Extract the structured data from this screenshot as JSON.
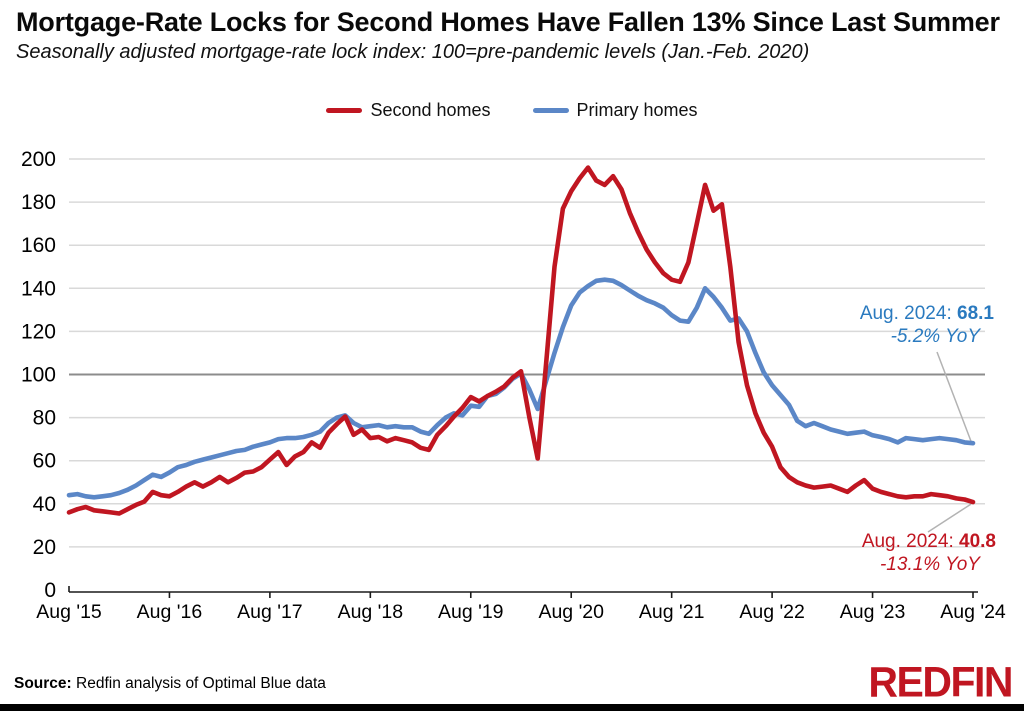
{
  "header": {
    "title": "Mortgage-Rate Locks for Second Homes Have Fallen 13% Since Last Summer",
    "subtitle": "Seasonally adjusted mortgage-rate lock index: 100=pre-pandemic levels (Jan.-Feb. 2020)"
  },
  "legend": [
    {
      "label": "Second homes",
      "color": "#c01621"
    },
    {
      "label": "Primary homes",
      "color": "#5b87c7"
    }
  ],
  "chart_data": {
    "type": "line",
    "title": "Mortgage-Rate Locks for Second Homes Have Fallen 13% Since Last Summer",
    "subtitle": "Seasonally adjusted mortgage-rate lock index: 100=pre-pandemic levels (Jan.-Feb. 2020)",
    "x_start": "2015-08",
    "x_end": "2024-08",
    "frequency": "monthly",
    "n_points": 109,
    "x_tick_labels": [
      "Aug '15",
      "Aug '16",
      "Aug '17",
      "Aug '18",
      "Aug '19",
      "Aug '20",
      "Aug '21",
      "Aug '22",
      "Aug '23",
      "Aug '24"
    ],
    "y_axis": {
      "min": 0,
      "max": 200,
      "step": 20,
      "reference_line": 100
    },
    "grid": "horizontal",
    "legend_position": "top-center",
    "series": [
      {
        "name": "Second homes",
        "color": "#c01621",
        "values": [
          36,
          37.5,
          38.5,
          37,
          36.5,
          36,
          35.5,
          37.5,
          39.5,
          41,
          45.5,
          44,
          43.5,
          45.5,
          48,
          50,
          48,
          50,
          52.5,
          50,
          52,
          54.5,
          55,
          57,
          60.5,
          64,
          58,
          62,
          64,
          68.5,
          66,
          73,
          77,
          80.5,
          72,
          74.5,
          70.5,
          71,
          69,
          70.5,
          69.5,
          68.5,
          66,
          65,
          72,
          76,
          80.5,
          84.5,
          89.5,
          87.5,
          90,
          92,
          94.5,
          98.5,
          101.5,
          80,
          61,
          105,
          150,
          177,
          185,
          191,
          196,
          190,
          188,
          192,
          186,
          175,
          166,
          158,
          152,
          147,
          144,
          143,
          152,
          170,
          188,
          176,
          179,
          150,
          115,
          95,
          82,
          73,
          66.5,
          57,
          52.5,
          50,
          48.5,
          47.5,
          48,
          48.5,
          47,
          45.5,
          48.5,
          51,
          47,
          45.5,
          44.5,
          43.5,
          43,
          43.5,
          43.5,
          44.5,
          44,
          43.5,
          42.5,
          42,
          40.8
        ]
      },
      {
        "name": "Primary homes",
        "color": "#5b87c7",
        "values": [
          44,
          44.5,
          43.5,
          43,
          43.5,
          44,
          45,
          46.5,
          48.5,
          51,
          53.5,
          52.5,
          54.5,
          57,
          58,
          59.5,
          60.5,
          61.5,
          62.5,
          63.5,
          64.5,
          65,
          66.5,
          67.5,
          68.5,
          70,
          70.5,
          70.5,
          71,
          72,
          73.5,
          77.5,
          80,
          81,
          77.5,
          75.5,
          76,
          76.5,
          75.5,
          76,
          75.5,
          75.5,
          73.5,
          72.5,
          76.5,
          80,
          82,
          81,
          85.5,
          85,
          90,
          91,
          94,
          98,
          100.5,
          93,
          84,
          97,
          110,
          122,
          132,
          138,
          141,
          143.5,
          144,
          143.5,
          141.5,
          139,
          136.5,
          134.5,
          133,
          131,
          127.5,
          125,
          124.5,
          131,
          140,
          136,
          131,
          125,
          126,
          120,
          110,
          101,
          95,
          90.5,
          86,
          78.5,
          76,
          77.5,
          76,
          74.5,
          73.5,
          72.5,
          73,
          73.5,
          71.8,
          71,
          70,
          68.5,
          70.5,
          70,
          69.5,
          70,
          70.5,
          70,
          69.5,
          68.5,
          68.1
        ]
      }
    ],
    "annotations": [
      {
        "series": "Primary homes",
        "prefix": "Aug. 2024: ",
        "value": "68.1",
        "yoy": "-5.2% YoY",
        "color": "#2a7abf"
      },
      {
        "series": "Second homes",
        "prefix": "Aug. 2024: ",
        "value": "40.8",
        "yoy": "-13.1% YoY",
        "color": "#c01621"
      }
    ],
    "colors": {
      "gridline": "#d9d9d9",
      "reference_line": "#8c8c8c",
      "axis": "#1a1a1a",
      "callout": "#b3b3b3"
    }
  },
  "footer": {
    "source_label": "Source:",
    "source_text": " Redfin analysis of Optimal Blue data",
    "logo_text": "REDFIN",
    "logo_color": "#c01621"
  }
}
